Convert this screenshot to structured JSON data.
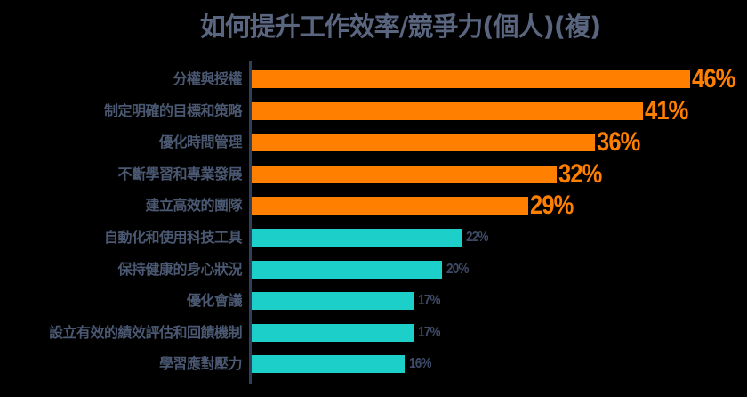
{
  "chart_data": {
    "type": "bar",
    "orientation": "horizontal",
    "title": "如何提升工作效率/競爭力(個人)(複)",
    "xlabel": "",
    "ylabel": "",
    "unit": "%",
    "grid": false,
    "legend": null,
    "highlight_threshold_note": "Top 5 items shown in orange with large labels; remaining in teal with small labels",
    "categories": [
      "分權與授權",
      "制定明確的目標和策略",
      "優化時間管理",
      "不斷學習和專業發展",
      "建立高效的團隊",
      "自動化和使用科技工具",
      "保持健康的身心狀況",
      "優化會議",
      "設立有效的績效評估和回饋機制",
      "學習應對壓力"
    ],
    "values": [
      46,
      41,
      36,
      32,
      29,
      22,
      20,
      17,
      17,
      16
    ],
    "value_labels": [
      "46%",
      "41%",
      "36%",
      "32%",
      "29%",
      "22%",
      "20%",
      "17%",
      "17%",
      "16%"
    ],
    "colors": {
      "highlight": "#FF8000",
      "normal": "#1CCFC9",
      "category_label": "#4B5872",
      "small_value_label": "#3E4A66",
      "title": "#5A6580",
      "axis": "#2F3F5E",
      "background": "#000000"
    },
    "highlight_count": 5
  }
}
